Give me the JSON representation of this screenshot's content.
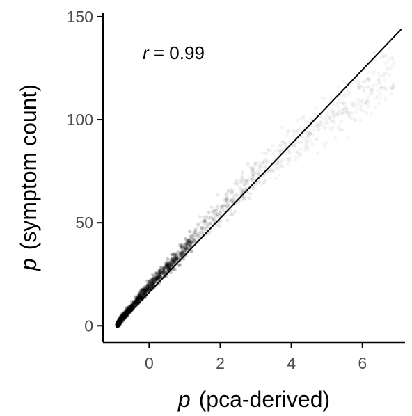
{
  "chart_data": {
    "type": "scatter",
    "title": "",
    "xlabel": {
      "var": "p",
      "desc": "(pca-derived)"
    },
    "ylabel": {
      "var": "p",
      "desc": "(symptom count)"
    },
    "xlim": [
      -1.3,
      7.2
    ],
    "ylim": [
      -8,
      152
    ],
    "xticks": [
      0,
      2,
      4,
      6
    ],
    "yticks": [
      0,
      50,
      100,
      150
    ],
    "xtick_labels": [
      "0",
      "2",
      "4",
      "6"
    ],
    "ytick_labels": [
      "0",
      "50",
      "100",
      "150"
    ],
    "grid": false,
    "annotation": {
      "var": "r",
      "text": " = 0.99"
    },
    "fit_line": {
      "x": [
        -0.9,
        7.1
      ],
      "y": [
        0,
        144
      ]
    },
    "point_cloud": {
      "trend": [
        [
          -0.9,
          0
        ],
        [
          -0.8,
          3
        ],
        [
          -0.6,
          7
        ],
        [
          -0.4,
          11
        ],
        [
          -0.2,
          15
        ],
        [
          0.0,
          19
        ],
        [
          0.2,
          23
        ],
        [
          0.5,
          28
        ],
        [
          1.0,
          37
        ],
        [
          1.5,
          47
        ],
        [
          2.0,
          56
        ],
        [
          2.5,
          65
        ],
        [
          3.0,
          73
        ],
        [
          3.5,
          81
        ],
        [
          4.0,
          88
        ],
        [
          4.5,
          95
        ],
        [
          5.0,
          101
        ],
        [
          5.5,
          107
        ],
        [
          6.0,
          112
        ],
        [
          6.5,
          118
        ],
        [
          6.9,
          124
        ]
      ],
      "color": "#000000"
    }
  }
}
